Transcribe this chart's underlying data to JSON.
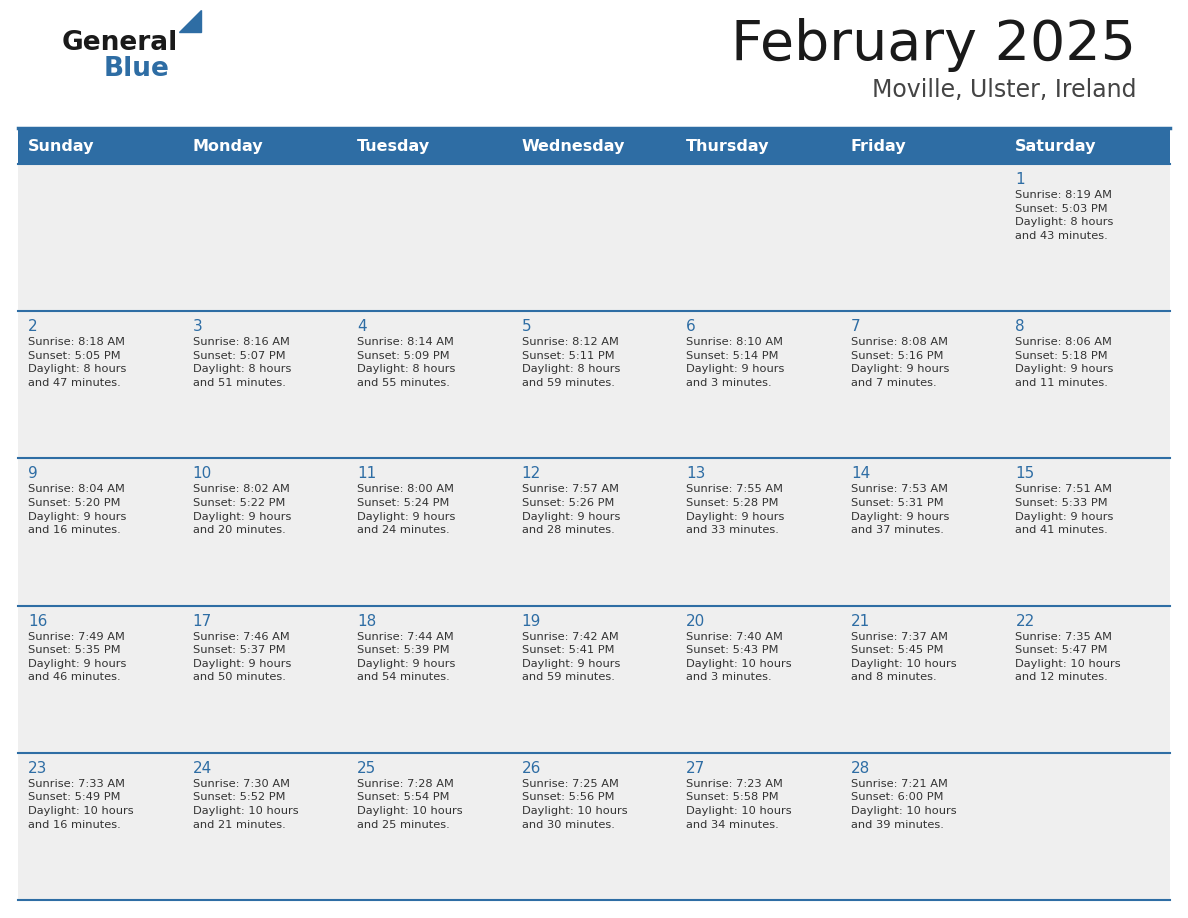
{
  "title": "February 2025",
  "subtitle": "Moville, Ulster, Ireland",
  "header_bg": "#2e6da4",
  "header_text_color": "#ffffff",
  "day_names": [
    "Sunday",
    "Monday",
    "Tuesday",
    "Wednesday",
    "Thursday",
    "Friday",
    "Saturday"
  ],
  "cell_bg": "#efefef",
  "cell_bg_white": "#ffffff",
  "title_color": "#1a1a1a",
  "subtitle_color": "#444444",
  "day_number_color": "#2e6da4",
  "body_text_color": "#333333",
  "divider_color": "#2e6da4",
  "logo_color1": "#1a1a1a",
  "logo_color2": "#2e6da4",
  "weeks": [
    [
      {
        "day": null,
        "info": null
      },
      {
        "day": null,
        "info": null
      },
      {
        "day": null,
        "info": null
      },
      {
        "day": null,
        "info": null
      },
      {
        "day": null,
        "info": null
      },
      {
        "day": null,
        "info": null
      },
      {
        "day": 1,
        "info": "Sunrise: 8:19 AM\nSunset: 5:03 PM\nDaylight: 8 hours\nand 43 minutes."
      }
    ],
    [
      {
        "day": 2,
        "info": "Sunrise: 8:18 AM\nSunset: 5:05 PM\nDaylight: 8 hours\nand 47 minutes."
      },
      {
        "day": 3,
        "info": "Sunrise: 8:16 AM\nSunset: 5:07 PM\nDaylight: 8 hours\nand 51 minutes."
      },
      {
        "day": 4,
        "info": "Sunrise: 8:14 AM\nSunset: 5:09 PM\nDaylight: 8 hours\nand 55 minutes."
      },
      {
        "day": 5,
        "info": "Sunrise: 8:12 AM\nSunset: 5:11 PM\nDaylight: 8 hours\nand 59 minutes."
      },
      {
        "day": 6,
        "info": "Sunrise: 8:10 AM\nSunset: 5:14 PM\nDaylight: 9 hours\nand 3 minutes."
      },
      {
        "day": 7,
        "info": "Sunrise: 8:08 AM\nSunset: 5:16 PM\nDaylight: 9 hours\nand 7 minutes."
      },
      {
        "day": 8,
        "info": "Sunrise: 8:06 AM\nSunset: 5:18 PM\nDaylight: 9 hours\nand 11 minutes."
      }
    ],
    [
      {
        "day": 9,
        "info": "Sunrise: 8:04 AM\nSunset: 5:20 PM\nDaylight: 9 hours\nand 16 minutes."
      },
      {
        "day": 10,
        "info": "Sunrise: 8:02 AM\nSunset: 5:22 PM\nDaylight: 9 hours\nand 20 minutes."
      },
      {
        "day": 11,
        "info": "Sunrise: 8:00 AM\nSunset: 5:24 PM\nDaylight: 9 hours\nand 24 minutes."
      },
      {
        "day": 12,
        "info": "Sunrise: 7:57 AM\nSunset: 5:26 PM\nDaylight: 9 hours\nand 28 minutes."
      },
      {
        "day": 13,
        "info": "Sunrise: 7:55 AM\nSunset: 5:28 PM\nDaylight: 9 hours\nand 33 minutes."
      },
      {
        "day": 14,
        "info": "Sunrise: 7:53 AM\nSunset: 5:31 PM\nDaylight: 9 hours\nand 37 minutes."
      },
      {
        "day": 15,
        "info": "Sunrise: 7:51 AM\nSunset: 5:33 PM\nDaylight: 9 hours\nand 41 minutes."
      }
    ],
    [
      {
        "day": 16,
        "info": "Sunrise: 7:49 AM\nSunset: 5:35 PM\nDaylight: 9 hours\nand 46 minutes."
      },
      {
        "day": 17,
        "info": "Sunrise: 7:46 AM\nSunset: 5:37 PM\nDaylight: 9 hours\nand 50 minutes."
      },
      {
        "day": 18,
        "info": "Sunrise: 7:44 AM\nSunset: 5:39 PM\nDaylight: 9 hours\nand 54 minutes."
      },
      {
        "day": 19,
        "info": "Sunrise: 7:42 AM\nSunset: 5:41 PM\nDaylight: 9 hours\nand 59 minutes."
      },
      {
        "day": 20,
        "info": "Sunrise: 7:40 AM\nSunset: 5:43 PM\nDaylight: 10 hours\nand 3 minutes."
      },
      {
        "day": 21,
        "info": "Sunrise: 7:37 AM\nSunset: 5:45 PM\nDaylight: 10 hours\nand 8 minutes."
      },
      {
        "day": 22,
        "info": "Sunrise: 7:35 AM\nSunset: 5:47 PM\nDaylight: 10 hours\nand 12 minutes."
      }
    ],
    [
      {
        "day": 23,
        "info": "Sunrise: 7:33 AM\nSunset: 5:49 PM\nDaylight: 10 hours\nand 16 minutes."
      },
      {
        "day": 24,
        "info": "Sunrise: 7:30 AM\nSunset: 5:52 PM\nDaylight: 10 hours\nand 21 minutes."
      },
      {
        "day": 25,
        "info": "Sunrise: 7:28 AM\nSunset: 5:54 PM\nDaylight: 10 hours\nand 25 minutes."
      },
      {
        "day": 26,
        "info": "Sunrise: 7:25 AM\nSunset: 5:56 PM\nDaylight: 10 hours\nand 30 minutes."
      },
      {
        "day": 27,
        "info": "Sunrise: 7:23 AM\nSunset: 5:58 PM\nDaylight: 10 hours\nand 34 minutes."
      },
      {
        "day": 28,
        "info": "Sunrise: 7:21 AM\nSunset: 6:00 PM\nDaylight: 10 hours\nand 39 minutes."
      },
      {
        "day": null,
        "info": null
      }
    ]
  ]
}
